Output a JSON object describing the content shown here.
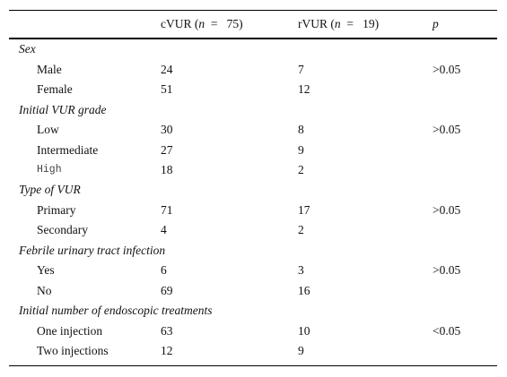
{
  "header": {
    "columns": [
      {
        "prefix": "cVUR (",
        "var": "n",
        "suffix": "  =   75)"
      },
      {
        "prefix": "rVUR (",
        "var": "n",
        "suffix": "  =   19)"
      },
      {
        "prefix": "",
        "var": "p",
        "suffix": ""
      }
    ]
  },
  "sections": [
    {
      "title": "Sex",
      "rows": [
        {
          "label": "Male",
          "c": 24,
          "r": 7,
          "p": ">0.05"
        },
        {
          "label": "Female",
          "c": 51,
          "r": 12
        }
      ]
    },
    {
      "title": "Initial VUR grade",
      "rows": [
        {
          "label": "Low",
          "c": 30,
          "r": 8,
          "p": ">0.05"
        },
        {
          "label": "Intermediate",
          "c": 27,
          "r": 9
        },
        {
          "label": "High",
          "c": 18,
          "r": 2,
          "mono": true
        }
      ]
    },
    {
      "title": "Type of VUR",
      "rows": [
        {
          "label": "Primary",
          "c": 71,
          "r": 17,
          "p": ">0.05"
        },
        {
          "label": "Secondary",
          "c": 4,
          "r": 2
        }
      ]
    },
    {
      "title": "Febrile urinary tract infection",
      "rows": [
        {
          "label": "Yes",
          "c": 6,
          "r": 3,
          "p": ">0.05"
        },
        {
          "label": "No",
          "c": 69,
          "r": 16
        }
      ]
    },
    {
      "title": "Initial number of endoscopic treatments",
      "rows": [
        {
          "label": "One injection",
          "c": 63,
          "r": 10,
          "p": "<0.05"
        },
        {
          "label": "Two injections",
          "c": 12,
          "r": 9
        }
      ]
    }
  ]
}
